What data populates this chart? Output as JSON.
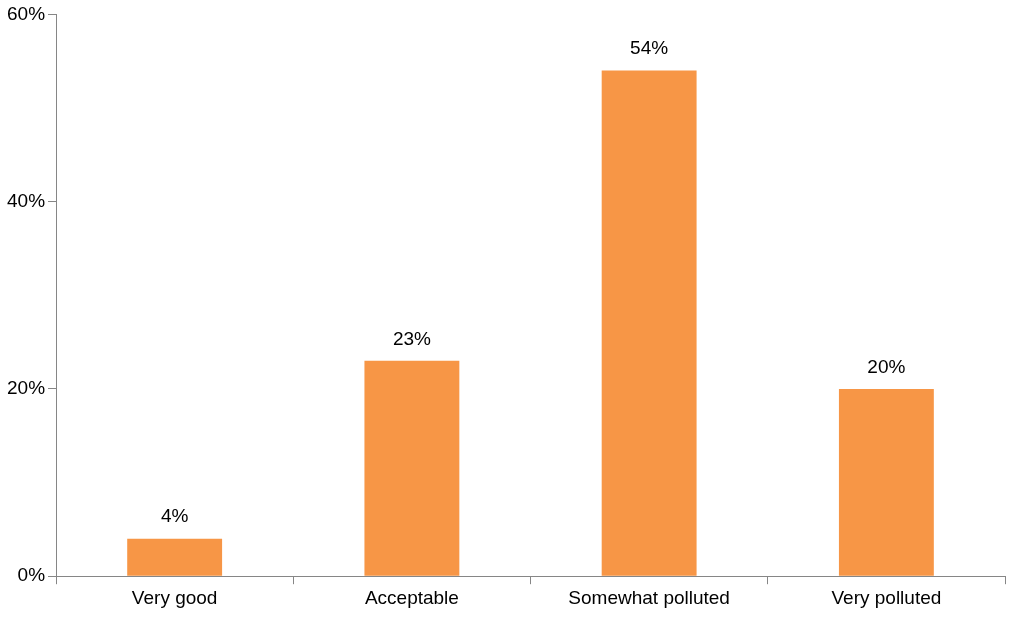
{
  "chart_data": {
    "type": "bar",
    "categories": [
      "Very good",
      "Acceptable",
      "Somewhat polluted",
      "Very polluted"
    ],
    "values": [
      4,
      23,
      54,
      20
    ],
    "value_labels": [
      "4%",
      "23%",
      "54%",
      "20%"
    ],
    "color": "#f79646",
    "ylim": [
      0,
      60
    ],
    "yticks": [
      {
        "value": 0,
        "label": "0%"
      },
      {
        "value": 20,
        "label": "20%"
      },
      {
        "value": 40,
        "label": "40%"
      },
      {
        "value": 60,
        "label": "60%"
      }
    ],
    "grid": false,
    "legend": false
  }
}
